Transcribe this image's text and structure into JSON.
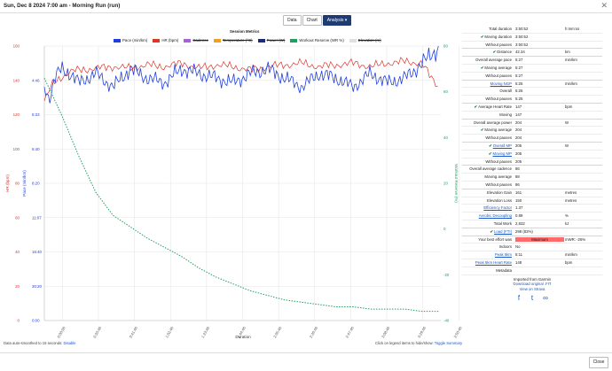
{
  "window": {
    "title": "Sun, Dec 8 2024 7:00 am - Morning Run (run)",
    "close_glyph": "✕"
  },
  "tabs": [
    {
      "label": "Data"
    },
    {
      "label": "Chart"
    },
    {
      "label": "Analysis ▾"
    }
  ],
  "chart": {
    "title": "Session Metrics",
    "legend": [
      {
        "label": "Pace (min/km)",
        "color": "#1f3fe0",
        "off": false
      },
      {
        "label": "HR (bpm)",
        "color": "#e0342b",
        "off": false
      },
      {
        "label": "Cadence",
        "color": "#a660d8",
        "off": true
      },
      {
        "label": "Temperature (°C)",
        "color": "#f0a020",
        "off": true
      },
      {
        "label": "Power (W)",
        "color": "#1b2a7a",
        "off": true
      },
      {
        "label": "Workout Reserve (WR %)",
        "color": "#20a060",
        "off": false
      },
      {
        "label": "Elevation (m)",
        "color": "#e0e0e0",
        "off": true
      }
    ],
    "hr_axis_label": "HR (bpm)",
    "pace_axis_label": "Pace (min/km)",
    "wr_axis_label": "Workout Reserve (%)",
    "x_axis_label": "Duration"
  },
  "chart_data": {
    "type": "line",
    "xlabel": "Duration",
    "x_ticks": [
      "0:00:00",
      "0:20:46",
      "0:41:46",
      "1:02:46",
      "1:23:46",
      "1:44:46",
      "2:05:46",
      "2:26:46",
      "2:47:46",
      "3:08:46",
      "3:29:46",
      "3:50:46"
    ],
    "hr_ticks": [
      0,
      20,
      40,
      60,
      80,
      100,
      120,
      140,
      160
    ],
    "pace_ticks": [
      "0:00",
      "30:20",
      "16:40",
      "11:07",
      "8:20",
      "6:40",
      "5:33",
      "4:46"
    ],
    "wr_ticks": [
      -40,
      -20,
      0,
      20,
      40,
      60,
      80
    ],
    "ylim_hr": [
      0,
      160
    ],
    "ylim_wr": [
      -40,
      80
    ],
    "series": [
      {
        "name": "HR (bpm)",
        "axis": "hr",
        "x_min": [
          0,
          5,
          10,
          15,
          20,
          30,
          40,
          50,
          60,
          70,
          80,
          90,
          100,
          110,
          120,
          130,
          140,
          150,
          160,
          170,
          180,
          190,
          200,
          210,
          220,
          225,
          230
        ],
        "values": [
          128,
          138,
          142,
          145,
          146,
          147,
          148,
          147,
          149,
          148,
          150,
          147,
          149,
          148,
          146,
          148,
          149,
          150,
          148,
          149,
          150,
          148,
          150,
          151,
          150,
          142,
          136
        ]
      },
      {
        "name": "Pace (min/km)",
        "axis": "pace_speed",
        "x_min": [
          0,
          3,
          6,
          10,
          15,
          20,
          30,
          40,
          50,
          60,
          70,
          80,
          90,
          100,
          110,
          120,
          130,
          140,
          150,
          160,
          170,
          180,
          190,
          200,
          210,
          220,
          226,
          230
        ],
        "values": [
          5.6,
          5.9,
          5.4,
          5.2,
          5.3,
          5.5,
          5.3,
          5.6,
          5.2,
          5.4,
          5.5,
          5.2,
          5.3,
          5.4,
          5.5,
          5.3,
          5.2,
          5.4,
          5.6,
          5.3,
          5.4,
          5.6,
          5.3,
          5.5,
          5.4,
          5.1,
          4.9,
          4.8
        ]
      },
      {
        "name": "Workout Reserve (WR %)",
        "axis": "wr",
        "x_min": [
          0,
          10,
          20,
          30,
          40,
          50,
          60,
          70,
          80,
          90,
          100,
          110,
          120,
          130,
          140,
          150,
          160,
          170,
          180,
          190,
          200,
          210,
          220,
          230
        ],
        "values": [
          66,
          50,
          32,
          16,
          6,
          1,
          -4,
          -8,
          -12,
          -17,
          -21,
          -24,
          -27,
          -29,
          -31,
          -32,
          -33,
          -34,
          -34,
          -35,
          -35,
          -35,
          -36,
          -36
        ]
      }
    ]
  },
  "notes": {
    "left_text": "Data auto-smoothed to 15 seconds:",
    "left_link": "Disable",
    "right_text": "Click on legend items to hide/show:",
    "right_link": "Toggle Summary"
  },
  "metrics": [
    {
      "label": "Total duration",
      "value": "3:50:52",
      "unit": "h:mm:ss",
      "check": false
    },
    {
      "label": "Moving duration",
      "value": "3:50:52",
      "unit": "",
      "check": true
    },
    {
      "label": "Without pauses",
      "value": "3:50:52",
      "unit": "",
      "check": false
    },
    {
      "label": "Distance",
      "value": "42.34",
      "unit": "km",
      "check": true
    },
    {
      "label": "Overall average pace",
      "value": "5:27",
      "unit": "min/km",
      "check": false
    },
    {
      "label": "Moving average",
      "value": "5:27",
      "unit": "",
      "check": true
    },
    {
      "label": "Without pauses",
      "value": "5:27",
      "unit": "",
      "check": false
    },
    {
      "label": "Moving NGP",
      "value": "5:25",
      "unit": "min/km",
      "check": false,
      "link": true
    },
    {
      "label": "Overall",
      "value": "5:25",
      "unit": "",
      "check": false
    },
    {
      "label": "Without pauses",
      "value": "5:25",
      "unit": "",
      "check": false
    },
    {
      "label": "Average Heart Rate",
      "value": "147",
      "unit": "bpm",
      "check": true
    },
    {
      "label": "Moving",
      "value": "147",
      "unit": "",
      "check": false
    },
    {
      "label": "Overall average power",
      "value": "204",
      "unit": "W",
      "check": false
    },
    {
      "label": "Moving average",
      "value": "204",
      "unit": "",
      "check": true
    },
    {
      "label": "Without pauses",
      "value": "204",
      "unit": "",
      "check": false
    },
    {
      "label": "Overall MP",
      "value": "205",
      "unit": "W",
      "check": true,
      "link": true
    },
    {
      "label": "Moving MP",
      "value": "205",
      "unit": "",
      "check": true,
      "link": true
    },
    {
      "label": "Without pauses",
      "value": "205",
      "unit": "",
      "check": false
    },
    {
      "label": "Overall average cadence",
      "value": "86",
      "unit": "",
      "check": false
    },
    {
      "label": "Moving average",
      "value": "88",
      "unit": "",
      "check": false
    },
    {
      "label": "Without pauses",
      "value": "86",
      "unit": "",
      "check": false
    },
    {
      "label": "Elevation Gain",
      "value": "161",
      "unit": "metres",
      "check": false
    },
    {
      "label": "Elevation Loss",
      "value": "150",
      "unit": "metres",
      "check": false
    },
    {
      "label": "Efficiency Factor",
      "value": "1.37",
      "unit": "",
      "check": false,
      "link": true
    },
    {
      "label": "Aerobic Decoupling",
      "value": "0.89",
      "unit": "%",
      "check": false,
      "link": true
    },
    {
      "label": "Total Work",
      "value": "2,832",
      "unit": "kJ",
      "check": false
    },
    {
      "label": "Load (FTI)",
      "value": "298 (83%)",
      "unit": "",
      "check": true,
      "link": true
    },
    {
      "label": "Your best effort was",
      "value": "Maximum",
      "unit": "mWR: -26%",
      "check": false,
      "bad": true
    },
    {
      "label": "Indoors",
      "value": "No",
      "unit": "",
      "check": false
    },
    {
      "label": "Peak 5km",
      "value": "5:11",
      "unit": "min/km",
      "check": false,
      "link": true
    },
    {
      "label": "Peak 5km Heart Rate",
      "value": "148",
      "unit": "bpm",
      "check": false,
      "link": true
    },
    {
      "label": "Metadata",
      "value": "",
      "unit": "",
      "check": false
    }
  ],
  "metadata": {
    "imported": "Imported from Garmin",
    "download": "Download original .FIT",
    "strava": "View on Strava"
  },
  "social": [
    {
      "icon": "facebook-icon",
      "glyph": "f"
    },
    {
      "icon": "twitter-icon",
      "glyph": "t"
    },
    {
      "icon": "link-icon",
      "glyph": "∞"
    }
  ],
  "close_button": "Close"
}
